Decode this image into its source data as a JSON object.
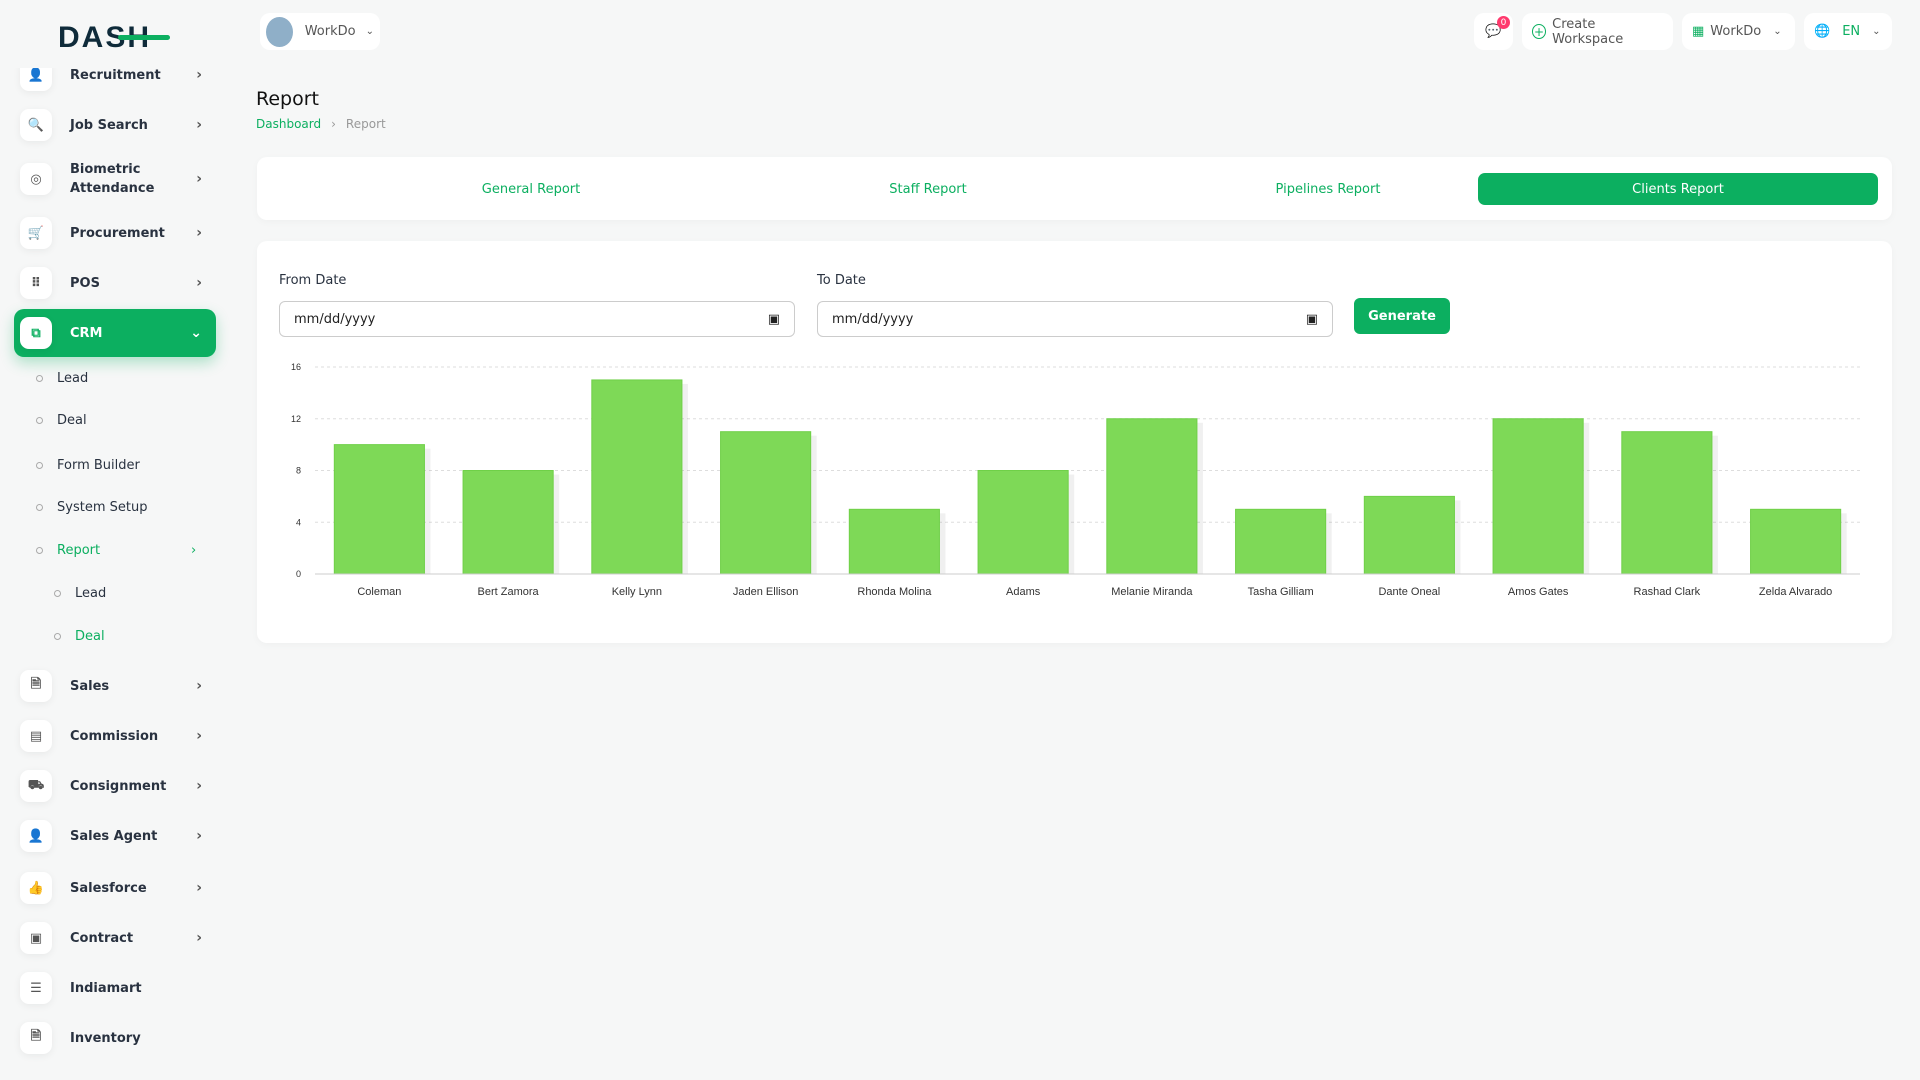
{
  "brand": {
    "logo_text": "DASH"
  },
  "header": {
    "workspace": "WorkDo",
    "notifications": "0",
    "create_workspace": "Create Workspace",
    "workdo_menu": "WorkDo",
    "language": "EN"
  },
  "sidebar": {
    "items": [
      {
        "label": "Recruitment",
        "icon": "user-plus-icon"
      },
      {
        "label": "Job Search",
        "icon": "file-search-icon"
      },
      {
        "label": "Biometric Attendance",
        "icon": "fingerprint-icon"
      },
      {
        "label": "Procurement",
        "icon": "cart-icon"
      },
      {
        "label": "POS",
        "icon": "grid-icon"
      },
      {
        "label": "CRM",
        "icon": "crm-icon"
      },
      {
        "label": "Sales",
        "icon": "file-icon"
      },
      {
        "label": "Commission",
        "icon": "calculator-icon"
      },
      {
        "label": "Consignment",
        "icon": "truck-icon"
      },
      {
        "label": "Sales Agent",
        "icon": "user-check-icon"
      },
      {
        "label": "Salesforce",
        "icon": "thumb-up-icon"
      },
      {
        "label": "Contract",
        "icon": "contract-icon"
      },
      {
        "label": "Indiamart",
        "icon": "list-icon"
      },
      {
        "label": "Inventory",
        "icon": "file-icon"
      }
    ],
    "crm_sub": [
      "Lead",
      "Deal",
      "Form Builder",
      "System Setup",
      "Report"
    ],
    "report_sub": [
      "Lead",
      "Deal"
    ]
  },
  "page": {
    "title": "Report",
    "breadcrumb": [
      "Dashboard",
      "Report"
    ]
  },
  "tabs": [
    "General Report",
    "Staff Report",
    "Pipelines Report",
    "Clients Report"
  ],
  "active_tab": "Clients Report",
  "form": {
    "from_label": "From Date",
    "from_value": "mm/dd/yyyy",
    "to_label": "To Date",
    "to_value": "mm/dd/yyyy",
    "generate": "Generate"
  },
  "chart_data": {
    "type": "bar",
    "categories": [
      "Coleman",
      "Bert Zamora",
      "Kelly Lynn",
      "Jaden Ellison",
      "Rhonda Molina",
      "Adams",
      "Melanie Miranda",
      "Tasha Gilliam",
      "Dante Oneal",
      "Amos Gates",
      "Rashad Clark",
      "Zelda Alvarado"
    ],
    "values": [
      10,
      8,
      15,
      11,
      5,
      8,
      12,
      5,
      6,
      12,
      11,
      5
    ],
    "ylim": [
      0,
      16
    ],
    "yticks": [
      0,
      4,
      8,
      12,
      16
    ],
    "grid": true,
    "color": "#7ed957"
  }
}
